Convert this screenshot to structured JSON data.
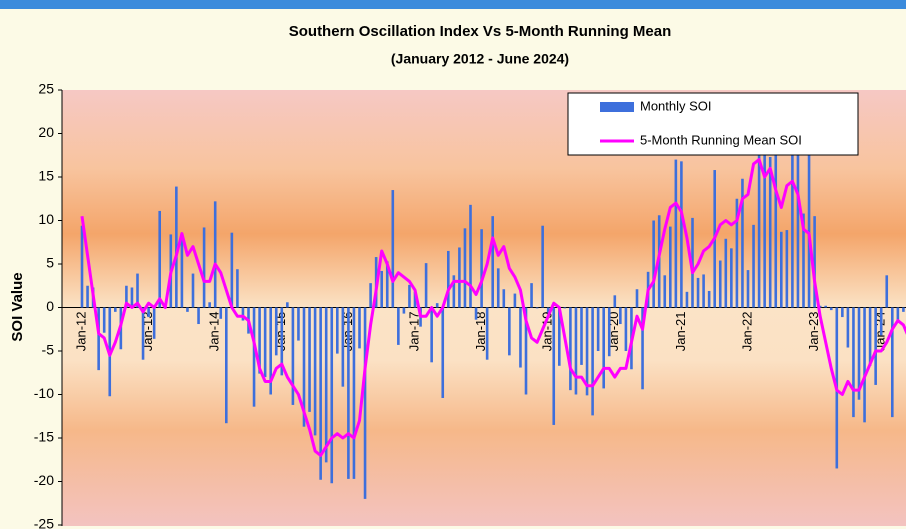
{
  "chart_data": {
    "type": "bar",
    "title": "Southern Oscillation Index Vs 5-Month Running Mean",
    "subtitle": "(January 2012 - June 2024)",
    "y_label": "SOI Value",
    "categories": [
      "Jan-12",
      null,
      null,
      null,
      null,
      null,
      null,
      null,
      null,
      null,
      null,
      null,
      "Jan-13",
      null,
      null,
      null,
      null,
      null,
      null,
      null,
      null,
      null,
      null,
      null,
      "Jan-14",
      null,
      null,
      null,
      null,
      null,
      null,
      null,
      null,
      null,
      null,
      null,
      "Jan-15",
      null,
      null,
      null,
      null,
      null,
      null,
      null,
      null,
      null,
      null,
      null,
      "Jan-16",
      null,
      null,
      null,
      null,
      null,
      null,
      null,
      null,
      null,
      null,
      null,
      "Jan-17",
      null,
      null,
      null,
      null,
      null,
      null,
      null,
      null,
      null,
      null,
      null,
      "Jan-18",
      null,
      null,
      null,
      null,
      null,
      null,
      null,
      null,
      null,
      null,
      null,
      "Jan-19",
      null,
      null,
      null,
      null,
      null,
      null,
      null,
      null,
      null,
      null,
      null,
      "Jan-20",
      null,
      null,
      null,
      null,
      null,
      null,
      null,
      null,
      null,
      null,
      null,
      "Jan-21",
      null,
      null,
      null,
      null,
      null,
      null,
      null,
      null,
      null,
      null,
      null,
      "Jan-22",
      null,
      null,
      null,
      null,
      null,
      null,
      null,
      null,
      null,
      null,
      null,
      "Jan-23",
      null,
      null,
      null,
      null,
      null,
      null,
      null,
      null,
      null,
      null,
      null,
      "Jan-24",
      null,
      null,
      null,
      null,
      null
    ],
    "series": [
      {
        "name": "Monthly SOI",
        "type": "bar",
        "color": "#3d6fdc",
        "values": [
          9.4,
          2.5,
          2.3,
          -7.2,
          -2.9,
          -10.2,
          -0.5,
          -4.8,
          2.5,
          2.3,
          3.9,
          -6.0,
          -1.1,
          -3.6,
          11.1,
          0.2,
          8.4,
          13.9,
          8.1,
          -0.5,
          3.9,
          -1.9,
          9.2,
          0.6,
          12.2,
          -1.3,
          -13.3,
          8.6,
          4.4,
          -1.5,
          -3.0,
          -11.4,
          -7.6,
          -8.0,
          -10.0,
          -5.5,
          -7.8,
          0.6,
          -11.2,
          -3.8,
          -13.7,
          -12.0,
          -14.7,
          -19.8,
          -17.8,
          -20.2,
          -5.3,
          -9.1,
          -19.7,
          -19.7,
          -4.7,
          -22.0,
          2.8,
          5.8,
          4.2,
          5.3,
          13.5,
          -4.3,
          -0.7,
          2.6,
          1.8,
          -2.2,
          5.1,
          -6.3,
          0.5,
          -10.4,
          6.5,
          3.7,
          6.9,
          9.1,
          11.8,
          -1.4,
          9.0,
          -6.0,
          10.5,
          4.5,
          2.1,
          -5.5,
          1.6,
          -6.9,
          -10.0,
          2.8,
          -0.1,
          9.4,
          -0.6,
          -13.5,
          -6.7,
          -0.1,
          -9.5,
          -10.0,
          -6.6,
          -10.1,
          -12.4,
          -5.0,
          -9.3,
          -5.6,
          1.4,
          -1.9,
          -5.0,
          -7.1,
          2.1,
          -9.4,
          4.1,
          10.0,
          10.6,
          3.7,
          9.3,
          17.0,
          16.8,
          1.8,
          10.3,
          3.4,
          3.8,
          1.9,
          15.8,
          5.4,
          7.9,
          6.8,
          12.5,
          14.8,
          4.3,
          9.5,
          18.6,
          20.5,
          17.3,
          19.0,
          8.7,
          8.9,
          18.3,
          19.0,
          10.8,
          20.9,
          10.5,
          0.2,
          0.2,
          -0.3,
          -18.5,
          -1.1,
          -4.6,
          -12.6,
          -10.6,
          -13.2,
          -6.7,
          -8.9,
          -3.2,
          3.7,
          -12.6,
          -1.5,
          -0.5,
          3.4
        ]
      },
      {
        "name": "5-Month Running Mean SOI",
        "type": "line",
        "color": "#ff00ff",
        "values": [
          10.5,
          6,
          1.5,
          -3,
          -3.5,
          -5.5,
          -4,
          -2,
          0.5,
          0,
          0.5,
          -0.5,
          0.5,
          0,
          1,
          0,
          4,
          6,
          8.5,
          6,
          7,
          5,
          3,
          3,
          5,
          4,
          2,
          0,
          -1,
          -1,
          -1.5,
          -4,
          -7,
          -8.5,
          -8.5,
          -7,
          -6.5,
          -8,
          -9,
          -10,
          -12,
          -14,
          -16.5,
          -17,
          -16,
          -15,
          -14.5,
          -15,
          -14.5,
          -15,
          -13,
          -7,
          -2,
          2,
          6.5,
          5,
          3,
          4,
          3.5,
          3,
          2,
          -1,
          -1,
          0,
          -1,
          0,
          2,
          3,
          3,
          3,
          2.5,
          1.5,
          3,
          5,
          8,
          6,
          7,
          4.5,
          3.5,
          2,
          -1.5,
          -3.5,
          -4,
          -2.5,
          -1,
          0.5,
          0,
          -3.5,
          -7,
          -8,
          -8,
          -9,
          -9,
          -8,
          -7,
          -7,
          -8,
          -7,
          -7,
          -4,
          -1,
          -2.5,
          2,
          3,
          6,
          9,
          11.5,
          12,
          11,
          8,
          4,
          5,
          6.5,
          7,
          8,
          9.5,
          10,
          9.5,
          10,
          12.5,
          13,
          16.5,
          17,
          15,
          16,
          13.5,
          11.5,
          14,
          14.5,
          13,
          9,
          8.5,
          3,
          -1,
          -4,
          -7,
          -9.5,
          -10,
          -8.5,
          -9.5,
          -9.5,
          -8,
          -6.5,
          -5,
          -5,
          -4,
          -2.5,
          -1.5,
          -2,
          -3.5
        ]
      }
    ],
    "ylim": [
      -25,
      25
    ],
    "yticks": [
      -25,
      -20,
      -15,
      -10,
      -5,
      0,
      5,
      10,
      15,
      20,
      25
    ]
  }
}
